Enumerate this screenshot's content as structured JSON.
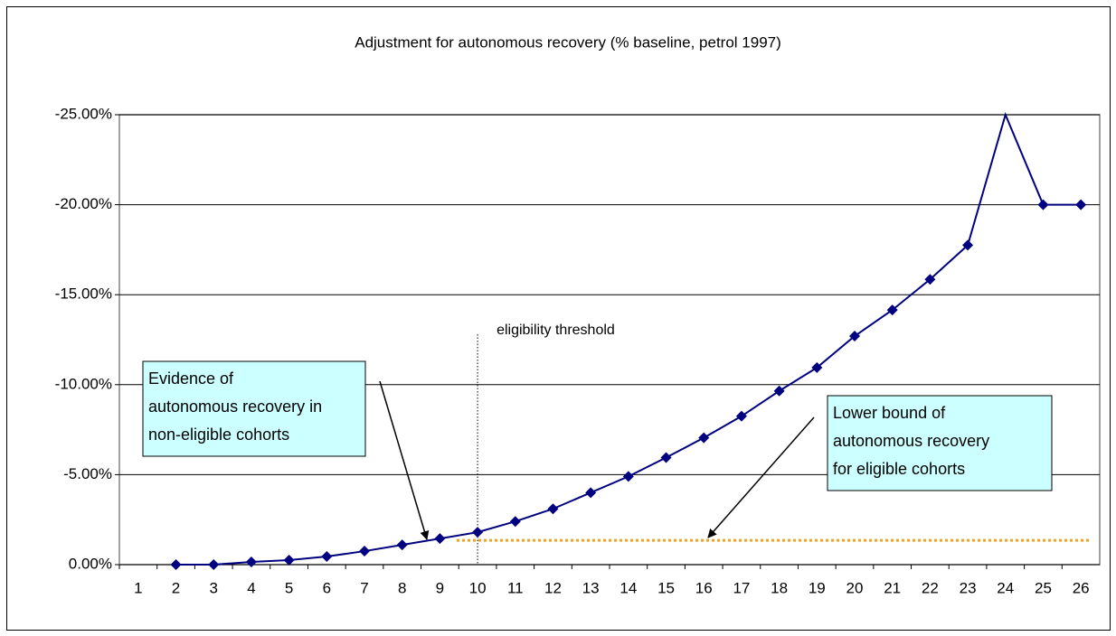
{
  "chart_data": {
    "type": "line",
    "title": "Adjustment for autonomous recovery (% baseline, petrol 1997)",
    "categories": [
      "1",
      "2",
      "3",
      "4",
      "5",
      "6",
      "7",
      "8",
      "9",
      "10",
      "11",
      "12",
      "13",
      "14",
      "15",
      "16",
      "17",
      "18",
      "19",
      "20",
      "21",
      "22",
      "23",
      "24",
      "25",
      "26"
    ],
    "series": [
      {
        "color": "#000080",
        "values": [
          null,
          0,
          0,
          -0.15,
          -0.25,
          -0.45,
          -0.75,
          -1.1,
          -1.45,
          -1.8,
          -2.4,
          -3.1,
          -4.0,
          -4.9,
          -5.95,
          -7.05,
          -8.25,
          -9.65,
          -10.95,
          -12.7,
          -14.15,
          -15.85,
          -17.75,
          -25,
          -20,
          -20
        ]
      }
    ],
    "ylim": [
      0,
      -25
    ],
    "yticks": [
      {
        "value": 0,
        "label": "0.00%"
      },
      {
        "value": -5,
        "label": "-5.00%"
      },
      {
        "value": -10,
        "label": "-10.00%"
      },
      {
        "value": -15,
        "label": "-15.00%"
      },
      {
        "value": -20,
        "label": "-20.00%"
      },
      {
        "value": -25,
        "label": "-25.00%"
      }
    ],
    "grid": true,
    "reference_line": {
      "value": -1.35,
      "color": "#f0a020"
    },
    "threshold": {
      "text": "eligibility threshold",
      "category": "10"
    },
    "annotations": [
      {
        "lines": [
          "Evidence of",
          "autonomous recovery in",
          "non-eligible cohorts"
        ]
      },
      {
        "lines": [
          "Lower bound of",
          "autonomous recovery",
          "for eligible cohorts"
        ]
      }
    ]
  }
}
